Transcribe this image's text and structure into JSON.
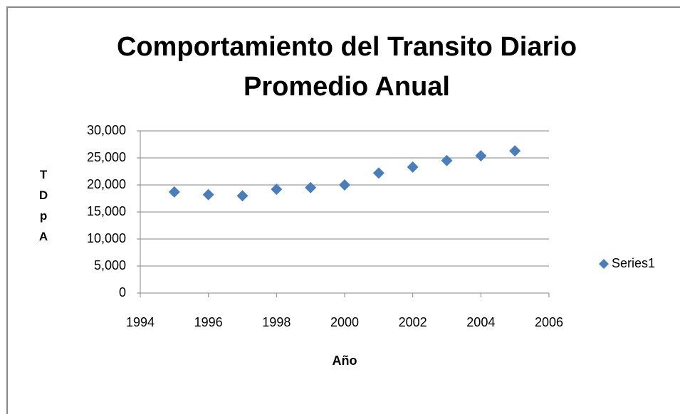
{
  "chart_data": {
    "type": "scatter",
    "title": [
      "Comportamiento del Transito Diario",
      "Promedio Anual"
    ],
    "x_label": "Año",
    "y_label": "TDpA",
    "series": [
      {
        "name": "Series1",
        "color": "#4a7ebb",
        "x": [
          1995,
          1996,
          1997,
          1998,
          1999,
          2000,
          2001,
          2002,
          2003,
          2004,
          2005
        ],
        "values": [
          18700,
          18200,
          18000,
          19200,
          19500,
          20000,
          22200,
          23300,
          24500,
          25400,
          26300
        ]
      }
    ],
    "xlim": [
      1994,
      2006
    ],
    "xticks": [
      1994,
      1996,
      1998,
      2000,
      2002,
      2004,
      2006
    ],
    "ylim": [
      0,
      30000
    ],
    "yticks": [
      0,
      {
        "value": 5000,
        "label": "5,000"
      },
      {
        "value": 10000,
        "label": "10,000"
      },
      {
        "value": 15000,
        "label": "15,000"
      },
      {
        "value": 20000,
        "label": "20,000"
      },
      {
        "value": 25000,
        "label": "25,000"
      },
      {
        "value": 30000,
        "label": "30,000"
      }
    ],
    "grid": true,
    "legend": "right"
  }
}
